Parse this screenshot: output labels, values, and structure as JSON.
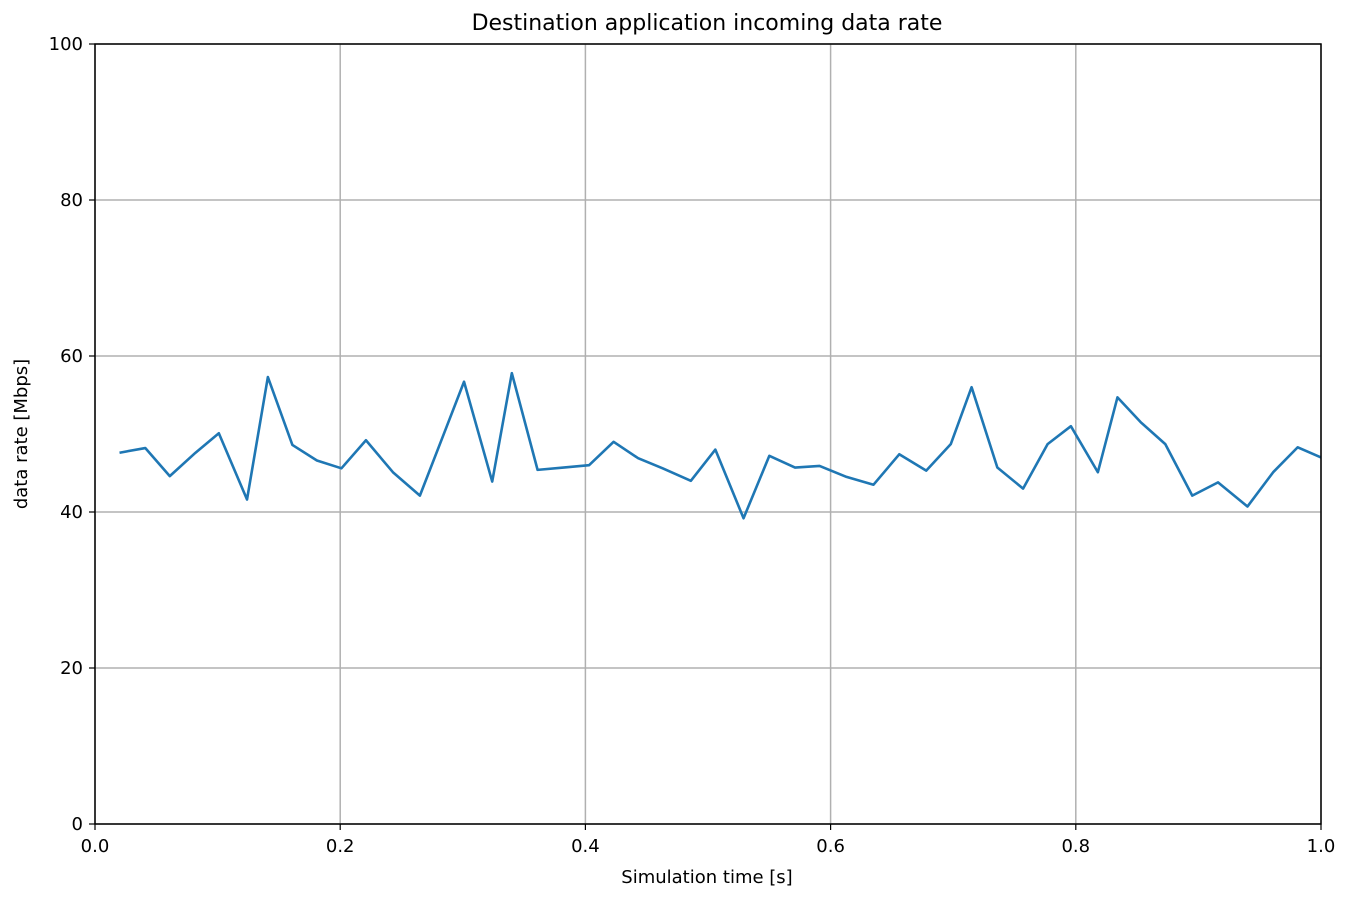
{
  "chart_data": {
    "type": "line",
    "title": "Destination application incoming data rate",
    "xlabel": "Simulation time [s]",
    "ylabel": "data rate [Mbps]",
    "xlim": [
      0.0,
      1.0
    ],
    "ylim": [
      0,
      100
    ],
    "xticks": [
      "0.0",
      "0.2",
      "0.4",
      "0.6",
      "0.8",
      "1.0"
    ],
    "yticks": [
      "0",
      "20",
      "40",
      "60",
      "80",
      "100"
    ],
    "grid": true,
    "colors": {
      "line": "#1f77b4",
      "grid": "#b0b0b0",
      "axes": "#000000"
    },
    "series": [
      {
        "x": [
          0.02,
          0.041,
          0.061,
          0.082,
          0.101,
          0.124,
          0.141,
          0.161,
          0.181,
          0.201,
          0.221,
          0.243,
          0.265,
          0.285,
          0.301,
          0.324,
          0.34,
          0.361,
          0.382,
          0.403,
          0.423,
          0.443,
          0.463,
          0.486,
          0.506,
          0.529,
          0.55,
          0.571,
          0.591,
          0.613,
          0.635,
          0.656,
          0.678,
          0.698,
          0.715,
          0.736,
          0.757,
          0.777,
          0.796,
          0.818,
          0.834,
          0.853,
          0.873,
          0.895,
          0.916,
          0.94,
          0.961,
          0.981,
          1.0
        ],
        "y": [
          47.6,
          48.2,
          44.6,
          47.6,
          50.1,
          41.6,
          57.3,
          48.6,
          46.6,
          45.6,
          49.2,
          45.1,
          42.1,
          50.2,
          56.7,
          43.9,
          57.8,
          45.4,
          45.7,
          46.0,
          49.0,
          46.9,
          45.6,
          44.0,
          48.0,
          39.2,
          47.2,
          45.7,
          45.9,
          44.5,
          43.5,
          47.4,
          45.3,
          48.7,
          56.0,
          45.7,
          43.0,
          48.7,
          51.0,
          45.1,
          54.7,
          51.5,
          48.7,
          42.1,
          43.8,
          40.7,
          45.1,
          48.3,
          47.0
        ]
      }
    ]
  }
}
